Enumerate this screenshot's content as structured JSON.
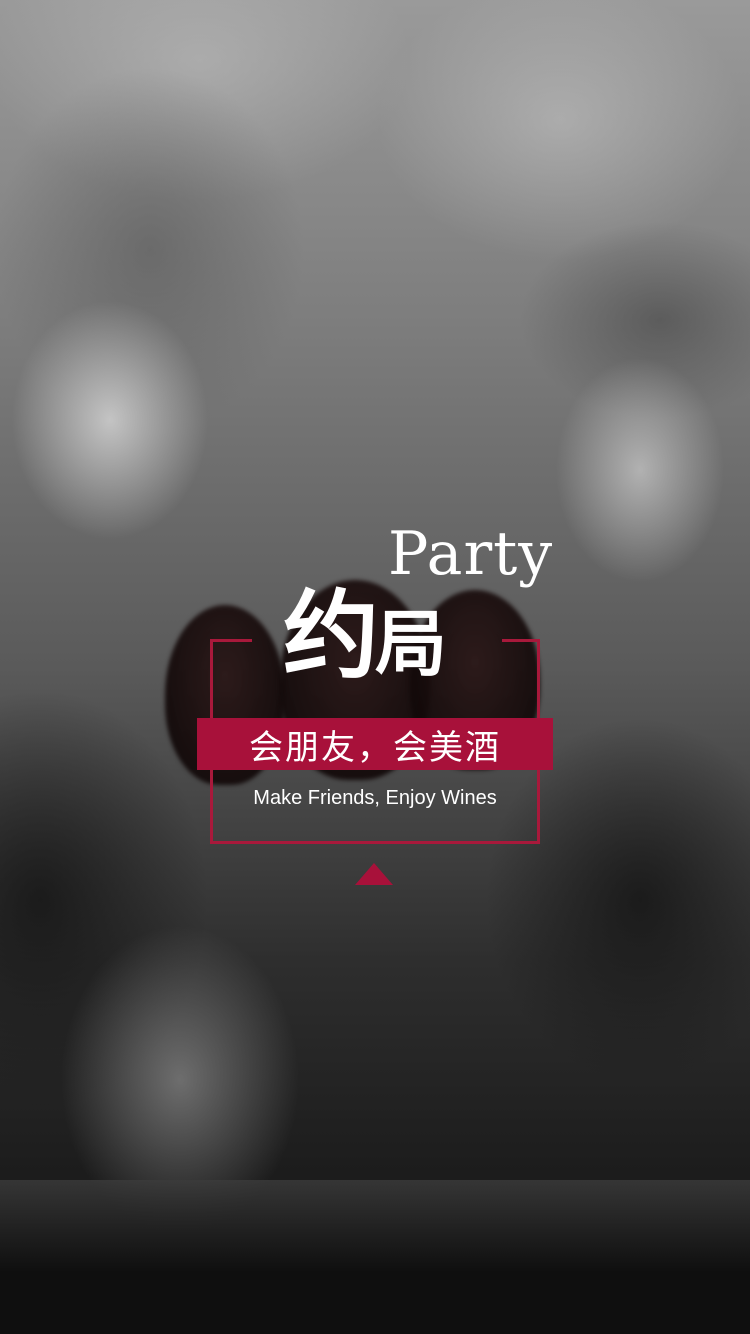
{
  "hero": {
    "title_en": "Party",
    "title_cn_1": "约",
    "title_cn_2": "局",
    "banner_text": "会朋友，会美酒",
    "subtitle_en": "Make Friends, Enjoy Wines"
  },
  "colors": {
    "accent": "#a8113a",
    "text": "#ffffff"
  },
  "icons": {
    "next_indicator": "triangle-up-icon"
  }
}
